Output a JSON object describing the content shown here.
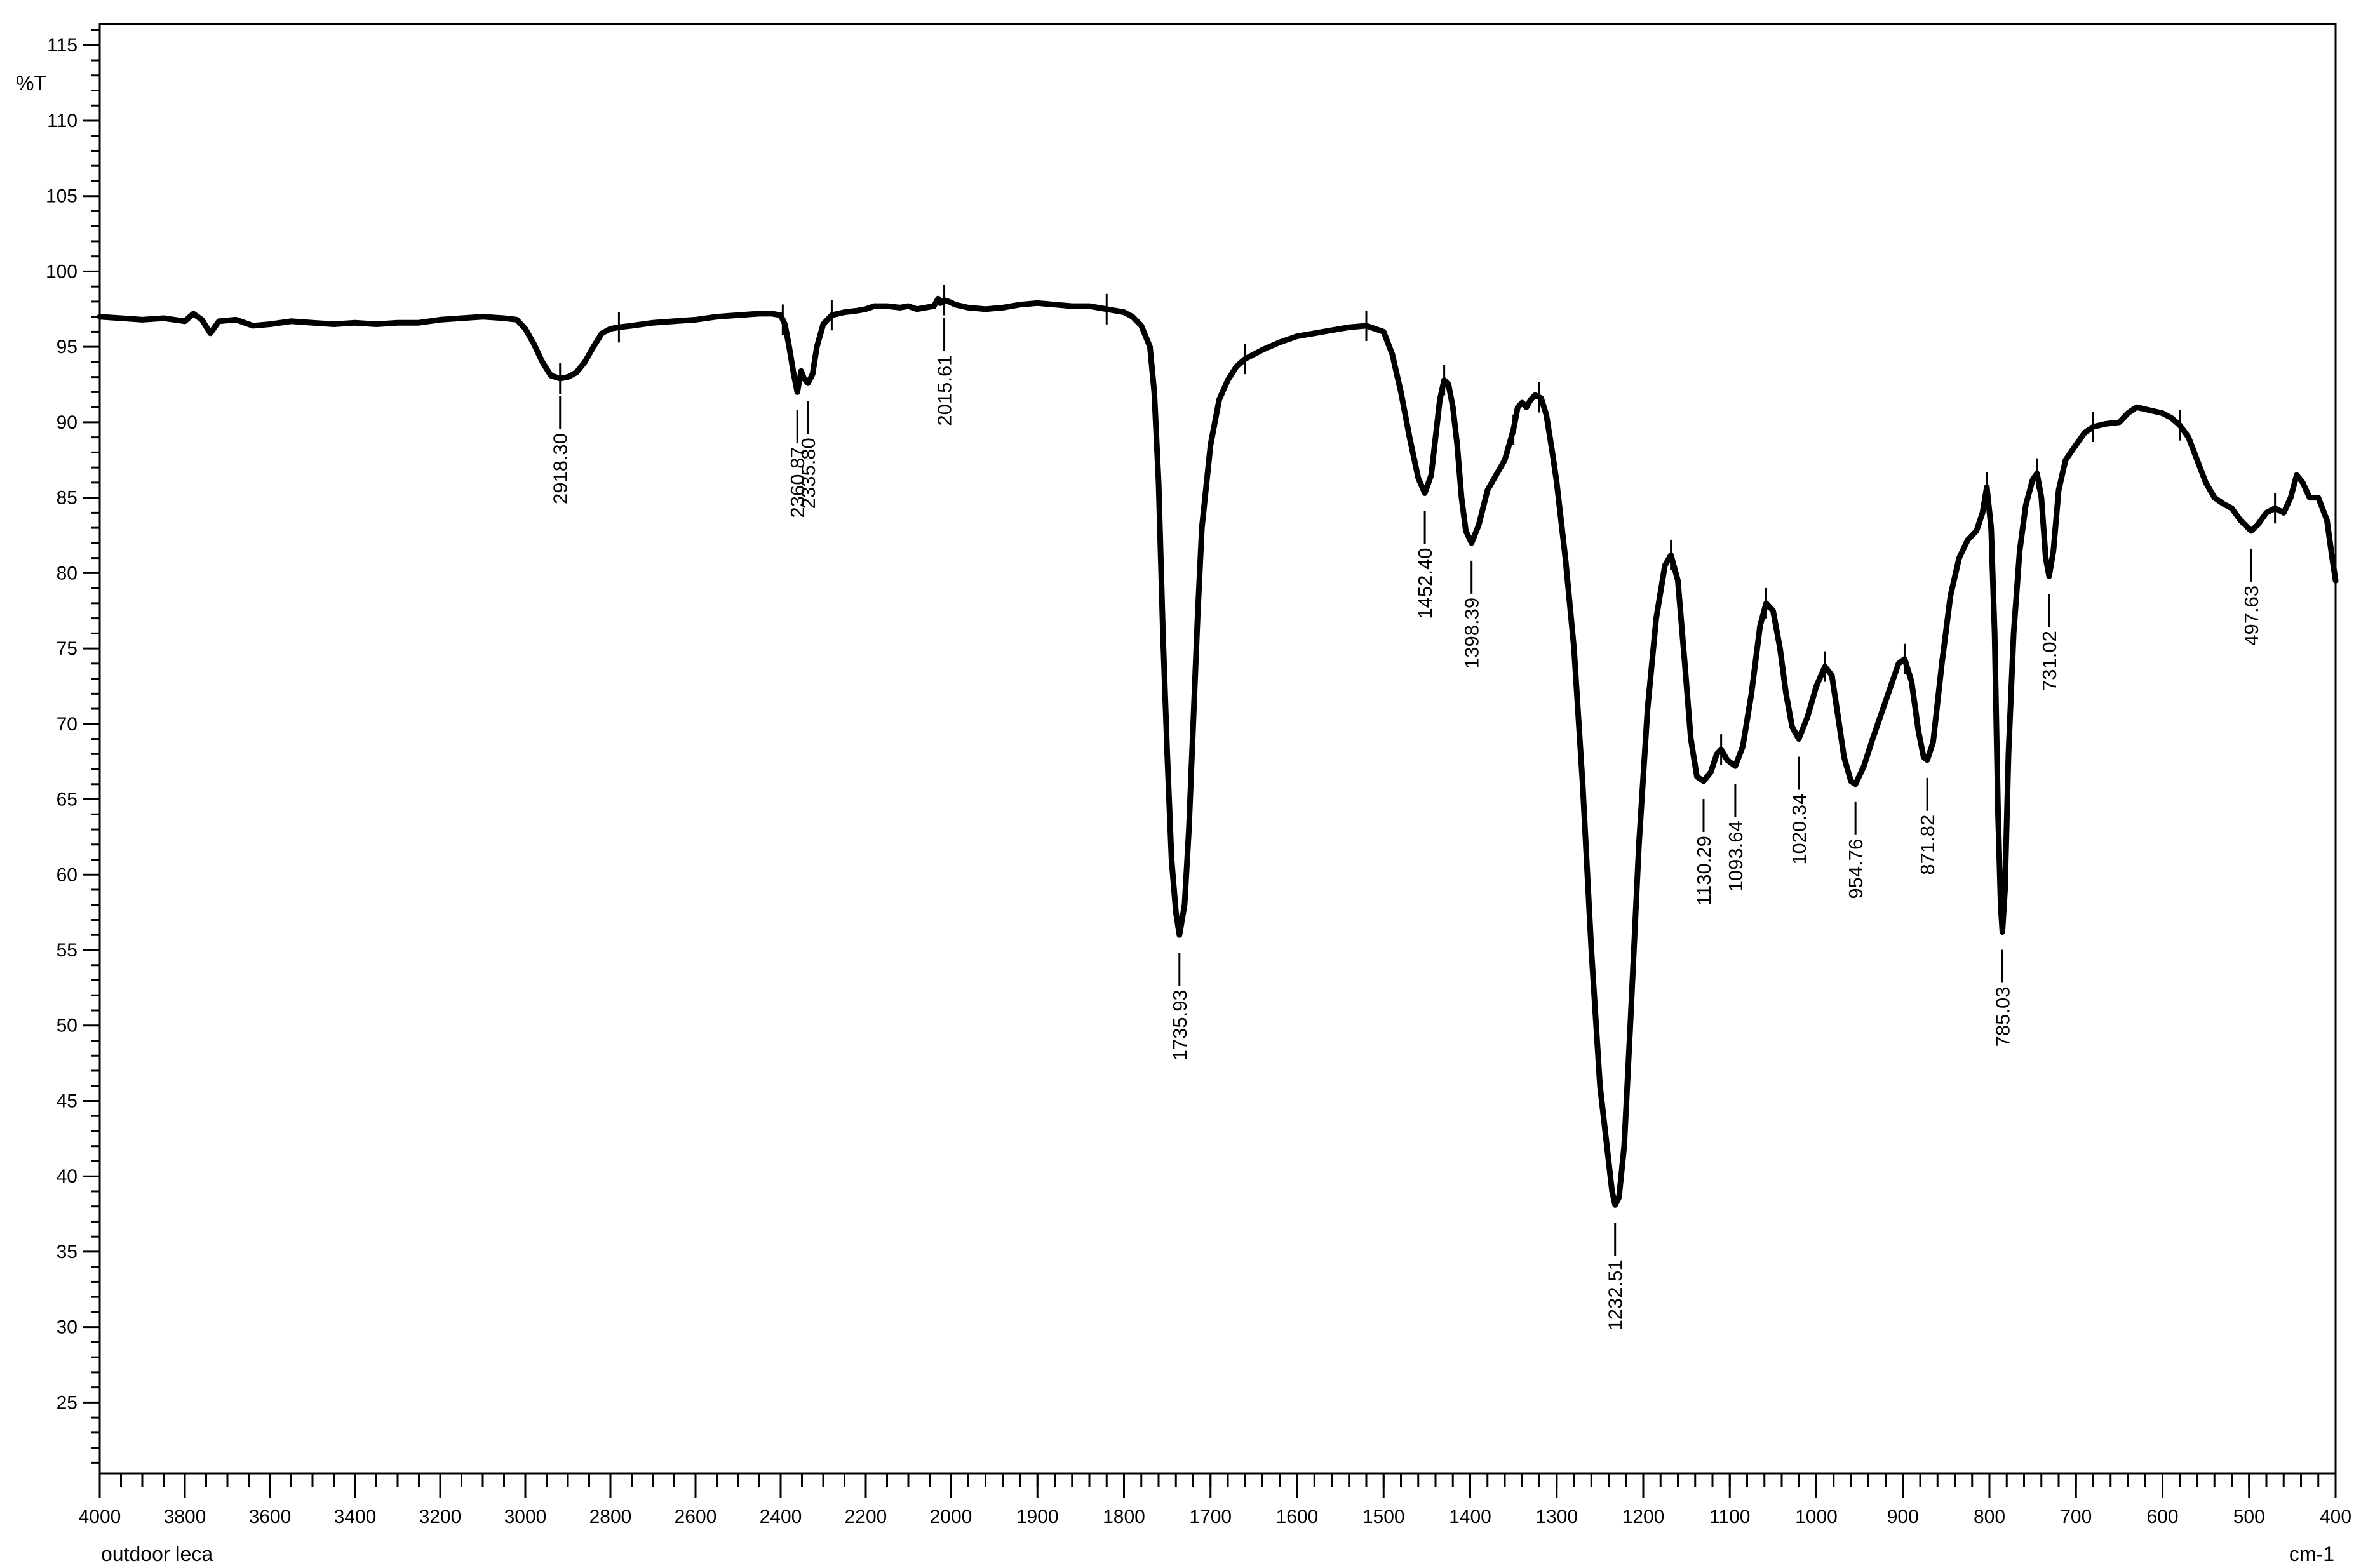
{
  "chart_data": {
    "type": "line",
    "title": "",
    "sample_label": "outdoor leca",
    "xlabel": "cm-1",
    "ylabel": "%T",
    "xlim": [
      4000,
      400
    ],
    "ylim": [
      20.3,
      116.4
    ],
    "x_axis_reversed": true,
    "x_tick_major": [
      4000,
      3800,
      3600,
      3400,
      3200,
      3000,
      2800,
      2600,
      2400,
      2200,
      2000,
      1900,
      1800,
      1700,
      1600,
      1500,
      1400,
      1300,
      1200,
      1100,
      1000,
      900,
      800,
      700,
      600,
      500,
      400
    ],
    "y_tick_major": [
      25,
      30,
      35,
      40,
      45,
      50,
      55,
      60,
      65,
      70,
      75,
      80,
      85,
      90,
      95,
      100,
      105,
      110,
      115
    ],
    "line_color": "#000000",
    "series": [
      {
        "name": "",
        "points": [
          [
            4000,
            97.0
          ],
          [
            3950,
            96.9
          ],
          [
            3900,
            96.8
          ],
          [
            3850,
            96.9
          ],
          [
            3800,
            96.7
          ],
          [
            3780,
            97.2
          ],
          [
            3760,
            96.8
          ],
          [
            3740,
            95.9
          ],
          [
            3720,
            96.7
          ],
          [
            3680,
            96.8
          ],
          [
            3640,
            96.4
          ],
          [
            3600,
            96.5
          ],
          [
            3550,
            96.7
          ],
          [
            3500,
            96.6
          ],
          [
            3450,
            96.5
          ],
          [
            3400,
            96.6
          ],
          [
            3350,
            96.5
          ],
          [
            3300,
            96.6
          ],
          [
            3250,
            96.6
          ],
          [
            3200,
            96.8
          ],
          [
            3150,
            96.9
          ],
          [
            3100,
            97.0
          ],
          [
            3050,
            96.9
          ],
          [
            3020,
            96.8
          ],
          [
            3000,
            96.2
          ],
          [
            2980,
            95.2
          ],
          [
            2960,
            94.0
          ],
          [
            2940,
            93.1
          ],
          [
            2918.3,
            92.9
          ],
          [
            2900,
            93.0
          ],
          [
            2880,
            93.3
          ],
          [
            2860,
            94.0
          ],
          [
            2840,
            95.0
          ],
          [
            2820,
            95.9
          ],
          [
            2800,
            96.2
          ],
          [
            2780,
            96.3
          ],
          [
            2750,
            96.4
          ],
          [
            2700,
            96.6
          ],
          [
            2650,
            96.7
          ],
          [
            2600,
            96.8
          ],
          [
            2550,
            97.0
          ],
          [
            2500,
            97.1
          ],
          [
            2450,
            97.2
          ],
          [
            2420,
            97.2
          ],
          [
            2400,
            97.1
          ],
          [
            2390,
            96.5
          ],
          [
            2380,
            95.0
          ],
          [
            2370,
            93.3
          ],
          [
            2360.87,
            92.0
          ],
          [
            2352,
            93.4
          ],
          [
            2345,
            92.9
          ],
          [
            2335.8,
            92.6
          ],
          [
            2325,
            93.2
          ],
          [
            2315,
            95.0
          ],
          [
            2300,
            96.5
          ],
          [
            2280,
            97.1
          ],
          [
            2250,
            97.3
          ],
          [
            2220,
            97.4
          ],
          [
            2200,
            97.5
          ],
          [
            2180,
            97.7
          ],
          [
            2150,
            97.7
          ],
          [
            2120,
            97.6
          ],
          [
            2100,
            97.7
          ],
          [
            2080,
            97.5
          ],
          [
            2060,
            97.6
          ],
          [
            2040,
            97.7
          ],
          [
            2030,
            98.2
          ],
          [
            2025,
            97.9
          ],
          [
            2015.61,
            98.1
          ],
          [
            2005,
            98.0
          ],
          [
            1995,
            97.8
          ],
          [
            1980,
            97.6
          ],
          [
            1960,
            97.5
          ],
          [
            1940,
            97.6
          ],
          [
            1920,
            97.8
          ],
          [
            1900,
            97.9
          ],
          [
            1880,
            97.8
          ],
          [
            1860,
            97.7
          ],
          [
            1840,
            97.7
          ],
          [
            1820,
            97.5
          ],
          [
            1800,
            97.3
          ],
          [
            1790,
            97.0
          ],
          [
            1780,
            96.4
          ],
          [
            1770,
            95.0
          ],
          [
            1765,
            92.0
          ],
          [
            1760,
            86.0
          ],
          [
            1755,
            76.0
          ],
          [
            1750,
            68.0
          ],
          [
            1745,
            61.0
          ],
          [
            1740,
            57.5
          ],
          [
            1735.93,
            56.0
          ],
          [
            1730,
            58.0
          ],
          [
            1725,
            63.0
          ],
          [
            1720,
            70.0
          ],
          [
            1715,
            77.0
          ],
          [
            1710,
            83.0
          ],
          [
            1700,
            88.5
          ],
          [
            1690,
            91.5
          ],
          [
            1680,
            92.8
          ],
          [
            1670,
            93.7
          ],
          [
            1660,
            94.2
          ],
          [
            1640,
            94.8
          ],
          [
            1620,
            95.3
          ],
          [
            1600,
            95.7
          ],
          [
            1580,
            95.9
          ],
          [
            1560,
            96.1
          ],
          [
            1540,
            96.3
          ],
          [
            1520,
            96.4
          ],
          [
            1500,
            96.0
          ],
          [
            1490,
            94.5
          ],
          [
            1480,
            92.0
          ],
          [
            1470,
            89.0
          ],
          [
            1460,
            86.3
          ],
          [
            1452.4,
            85.3
          ],
          [
            1445,
            86.5
          ],
          [
            1440,
            89.0
          ],
          [
            1435,
            91.5
          ],
          [
            1430,
            92.8
          ],
          [
            1425,
            92.5
          ],
          [
            1420,
            91.0
          ],
          [
            1415,
            88.5
          ],
          [
            1410,
            85.0
          ],
          [
            1405,
            82.8
          ],
          [
            1398.39,
            82.0
          ],
          [
            1390,
            83.2
          ],
          [
            1380,
            85.5
          ],
          [
            1370,
            86.5
          ],
          [
            1360,
            87.5
          ],
          [
            1350,
            89.5
          ],
          [
            1345,
            91.0
          ],
          [
            1340,
            91.3
          ],
          [
            1335,
            91.0
          ],
          [
            1330,
            91.5
          ],
          [
            1325,
            91.8
          ],
          [
            1318,
            91.6
          ],
          [
            1312,
            90.5
          ],
          [
            1305,
            88.0
          ],
          [
            1300,
            86.0
          ],
          [
            1290,
            81.0
          ],
          [
            1280,
            75.0
          ],
          [
            1270,
            66.0
          ],
          [
            1260,
            55.0
          ],
          [
            1250,
            46.0
          ],
          [
            1242,
            42.0
          ],
          [
            1236,
            39.0
          ],
          [
            1232.51,
            38.1
          ],
          [
            1228,
            38.6
          ],
          [
            1222,
            42.0
          ],
          [
            1215,
            50.0
          ],
          [
            1205,
            62.0
          ],
          [
            1195,
            71.0
          ],
          [
            1185,
            77.0
          ],
          [
            1175,
            80.5
          ],
          [
            1168,
            81.2
          ],
          [
            1160,
            79.5
          ],
          [
            1152,
            74.0
          ],
          [
            1145,
            69.0
          ],
          [
            1138,
            66.5
          ],
          [
            1130.29,
            66.2
          ],
          [
            1122,
            66.8
          ],
          [
            1115,
            68.0
          ],
          [
            1110,
            68.3
          ],
          [
            1103,
            67.6
          ],
          [
            1093.64,
            67.2
          ],
          [
            1085,
            68.5
          ],
          [
            1075,
            72.0
          ],
          [
            1065,
            76.5
          ],
          [
            1058,
            78.0
          ],
          [
            1050,
            77.5
          ],
          [
            1042,
            75.0
          ],
          [
            1035,
            72.0
          ],
          [
            1028,
            69.8
          ],
          [
            1020.34,
            69.0
          ],
          [
            1010,
            70.5
          ],
          [
            1000,
            72.5
          ],
          [
            990,
            73.8
          ],
          [
            982,
            73.2
          ],
          [
            975,
            70.5
          ],
          [
            968,
            67.8
          ],
          [
            960,
            66.2
          ],
          [
            954.76,
            66.0
          ],
          [
            945,
            67.2
          ],
          [
            935,
            69.0
          ],
          [
            920,
            71.5
          ],
          [
            905,
            74.0
          ],
          [
            898,
            74.3
          ],
          [
            890,
            72.8
          ],
          [
            882,
            69.5
          ],
          [
            876,
            67.8
          ],
          [
            871.82,
            67.6
          ],
          [
            865,
            68.8
          ],
          [
            855,
            74.0
          ],
          [
            845,
            78.5
          ],
          [
            835,
            81.0
          ],
          [
            825,
            82.2
          ],
          [
            815,
            82.8
          ],
          [
            808,
            84.0
          ],
          [
            803,
            85.7
          ],
          [
            798,
            83.0
          ],
          [
            794,
            76.0
          ],
          [
            790,
            64.0
          ],
          [
            787,
            58.0
          ],
          [
            785.03,
            56.2
          ],
          [
            782,
            59.0
          ],
          [
            778,
            68.0
          ],
          [
            772,
            76.0
          ],
          [
            765,
            81.5
          ],
          [
            758,
            84.5
          ],
          [
            750,
            86.2
          ],
          [
            745,
            86.6
          ],
          [
            740,
            85.0
          ],
          [
            735,
            81.0
          ],
          [
            731.02,
            79.8
          ],
          [
            726,
            81.5
          ],
          [
            720,
            85.5
          ],
          [
            712,
            87.5
          ],
          [
            700,
            88.5
          ],
          [
            690,
            89.3
          ],
          [
            680,
            89.7
          ],
          [
            665,
            89.9
          ],
          [
            650,
            90.0
          ],
          [
            640,
            90.6
          ],
          [
            630,
            91.0
          ],
          [
            615,
            90.8
          ],
          [
            600,
            90.6
          ],
          [
            590,
            90.3
          ],
          [
            580,
            89.8
          ],
          [
            570,
            89.0
          ],
          [
            560,
            87.5
          ],
          [
            550,
            86.0
          ],
          [
            540,
            85.0
          ],
          [
            530,
            84.6
          ],
          [
            520,
            84.3
          ],
          [
            510,
            83.5
          ],
          [
            497.63,
            82.8
          ],
          [
            490,
            83.2
          ],
          [
            480,
            84.0
          ],
          [
            470,
            84.3
          ],
          [
            460,
            84.0
          ],
          [
            452,
            85.0
          ],
          [
            445,
            86.5
          ],
          [
            438,
            86.0
          ],
          [
            430,
            85.0
          ],
          [
            420,
            85.0
          ],
          [
            410,
            83.5
          ],
          [
            404,
            81.0
          ],
          [
            400,
            79.5
          ]
        ]
      }
    ],
    "peak_labels": [
      {
        "x": 2918.3,
        "y": 92.9,
        "text": "2918.30"
      },
      {
        "x": 2360.87,
        "y": 92.0,
        "text": "2360.87"
      },
      {
        "x": 2335.8,
        "y": 92.6,
        "text": "2335.80"
      },
      {
        "x": 2015.61,
        "y": 98.1,
        "text": "2015.61"
      },
      {
        "x": 1735.93,
        "y": 56.0,
        "text": "1735.93"
      },
      {
        "x": 1452.4,
        "y": 85.3,
        "text": "1452.40"
      },
      {
        "x": 1398.39,
        "y": 82.0,
        "text": "1398.39"
      },
      {
        "x": 1232.51,
        "y": 38.1,
        "text": "1232.51"
      },
      {
        "x": 1130.29,
        "y": 66.2,
        "text": "1130.29"
      },
      {
        "x": 1093.64,
        "y": 67.2,
        "text": "1093.64"
      },
      {
        "x": 1020.34,
        "y": 69.0,
        "text": "1020.34"
      },
      {
        "x": 954.76,
        "y": 66.0,
        "text": "954.76"
      },
      {
        "x": 871.82,
        "y": 67.6,
        "text": "871.82"
      },
      {
        "x": 785.03,
        "y": 56.2,
        "text": "785.03"
      },
      {
        "x": 731.02,
        "y": 79.8,
        "text": "731.02"
      },
      {
        "x": 497.63,
        "y": 82.8,
        "text": "497.63"
      }
    ],
    "range_markers": [
      2918.3,
      2780,
      2395,
      2280,
      2015.61,
      1820,
      1660,
      1520,
      1430,
      1350,
      1320,
      1168,
      1110,
      1058,
      990,
      898,
      803,
      745,
      680,
      580,
      470
    ]
  }
}
